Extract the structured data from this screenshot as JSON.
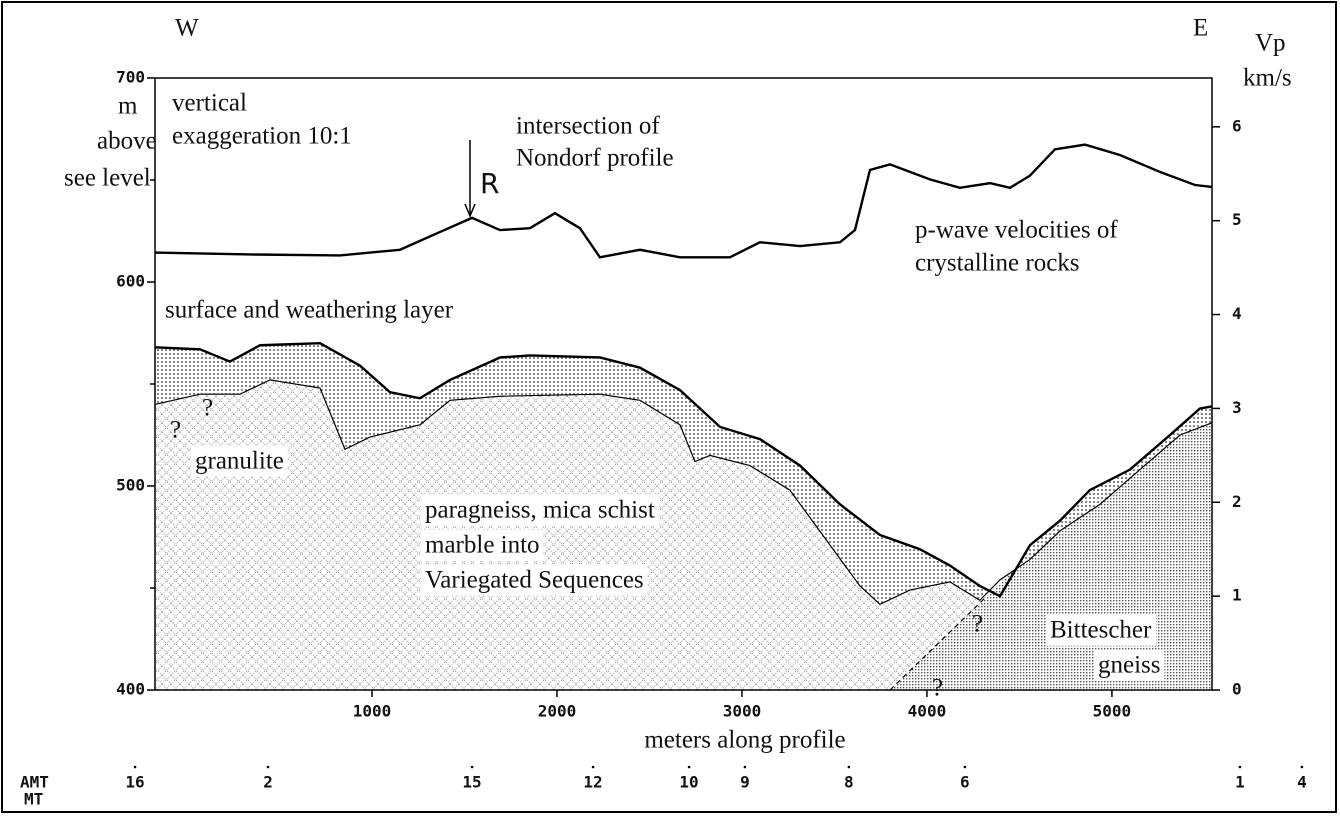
{
  "chart_data": {
    "type": "line",
    "xlabel": "meters along profile",
    "xlim": [
      -173,
      5541
    ],
    "xticks": [
      1000,
      2000,
      3000,
      4000,
      5000
    ],
    "ylim": [
      400,
      700
    ],
    "yticks": [
      400,
      500,
      600,
      700
    ],
    "yminor": [
      450,
      550,
      650
    ],
    "y2lim": [
      0,
      6.52
    ],
    "y2ticks": [
      0,
      1,
      2,
      3,
      4,
      5,
      6
    ],
    "ylabel": [
      "m",
      "above",
      "see level"
    ],
    "y2label": [
      "Vp",
      "km/s"
    ],
    "directions": [
      "W",
      "E"
    ],
    "series": [
      {
        "color": "#000",
        "axis": "y2",
        "x": [
          -173,
          341,
          827,
          1151,
          1368,
          1541,
          1692,
          1854,
          1989,
          2124,
          2232,
          2449,
          2665,
          2935,
          3097,
          3314,
          3530,
          3611,
          3692,
          3800,
          4016,
          4178,
          4341,
          4449,
          4557,
          4692,
          4854,
          5043,
          5259,
          5449,
          5541
        ],
        "values": [
          4.66,
          4.64,
          4.63,
          4.69,
          4.88,
          5.03,
          4.9,
          4.92,
          5.08,
          4.92,
          4.61,
          4.69,
          4.61,
          4.61,
          4.77,
          4.73,
          4.77,
          4.9,
          5.54,
          5.6,
          5.44,
          5.35,
          5.4,
          5.35,
          5.48,
          5.76,
          5.81,
          5.7,
          5.52,
          5.38,
          5.36
        ]
      },
      {
        "color": "#000",
        "x": [
          -173,
          70,
          232,
          395,
          719,
          935,
          1097,
          1259,
          1422,
          1692,
          1854,
          2232,
          2449,
          2665,
          2881,
          3097,
          3314,
          3530,
          3746,
          3962,
          4124,
          4286,
          4395,
          4557,
          4719,
          4881,
          5097,
          5314,
          5476,
          5541
        ],
        "values": [
          568,
          567,
          561,
          569,
          570,
          559,
          546,
          543,
          552,
          563,
          564,
          563,
          558,
          547,
          529,
          523,
          510,
          491,
          476,
          469,
          461,
          451,
          446,
          471,
          483,
          498,
          508,
          525,
          538,
          539
        ]
      },
      {
        "color": "#000",
        "x": [
          -173,
          70,
          286,
          449,
          719,
          854,
          989,
          1259,
          1422,
          1692,
          2232,
          2449,
          2665,
          2746,
          2827,
          3043,
          3259,
          3476,
          3638,
          3746,
          3908,
          4124,
          4286,
          4395,
          4557,
          4719,
          4935,
          5151,
          5368,
          5541
        ],
        "values": [
          540,
          545,
          545,
          552,
          548,
          518,
          524,
          530,
          542,
          544,
          545,
          542,
          530,
          512,
          515,
          510,
          498,
          471,
          451,
          442,
          449,
          453,
          444,
          454,
          464,
          478,
          491,
          508,
          525,
          531
        ]
      }
    ],
    "annotations": [
      "vertical",
      "exaggeration 10:1",
      "intersection of",
      "Nondorf profile",
      "R",
      "p-wave velocities of",
      "crystalline rocks",
      "surface and weathering layer",
      "granulite",
      "paragneiss, mica schist",
      "marble into",
      "Variegated Sequences",
      "Bittescher",
      "gneiss",
      "?",
      "?",
      "?",
      "?"
    ],
    "station_rows": [
      "AMT",
      "MT"
    ],
    "stations": {
      "labels": [
        "16",
        "2",
        "15",
        "12",
        "10",
        "9",
        "8",
        "6",
        "1",
        "4"
      ],
      "x": [
        -281,
        438,
        1541,
        2195,
        2714,
        3016,
        3578,
        4205,
        5692,
        6027
      ]
    }
  }
}
